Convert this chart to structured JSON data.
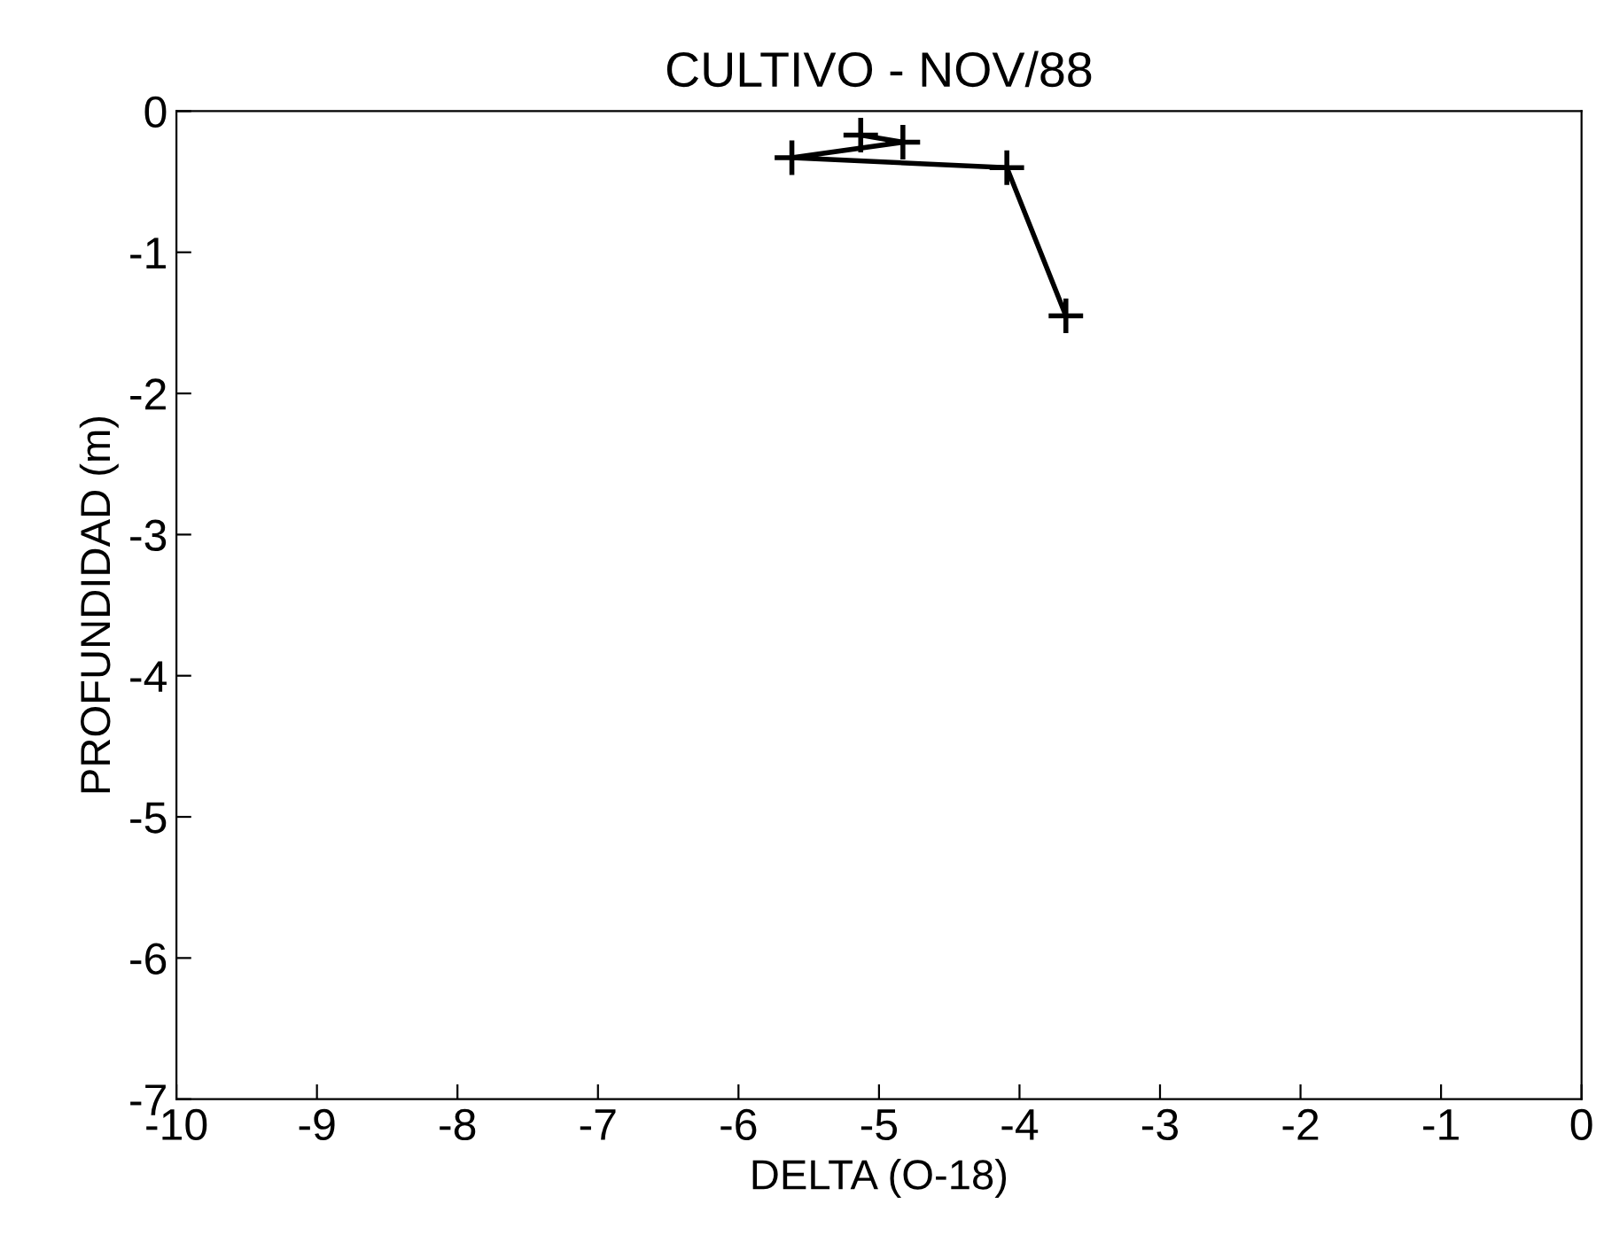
{
  "chart_data": {
    "type": "line",
    "title": "CULTIVO - NOV/88",
    "xlabel": "DELTA (O-18)",
    "ylabel": "PROFUNDIDAD (m)",
    "series": [
      {
        "color": "#000000",
        "x": [
          -5.13,
          -4.83,
          -5.62,
          -4.09,
          -3.67
        ],
        "values": [
          -0.17,
          -0.22,
          -0.33,
          -0.4,
          -1.45
        ]
      }
    ],
    "xlim": [
      -10,
      0
    ],
    "xticks": [
      -10,
      -9,
      -8,
      -7,
      -6,
      -5,
      -4,
      -3,
      -2,
      -1,
      0
    ],
    "ylim": [
      -7,
      0
    ],
    "yticks": [
      -7,
      -6,
      -5,
      -4,
      -3,
      -2,
      -1,
      0
    ],
    "marker": "cross",
    "line_style": "solid",
    "grid": false,
    "legend": false
  }
}
